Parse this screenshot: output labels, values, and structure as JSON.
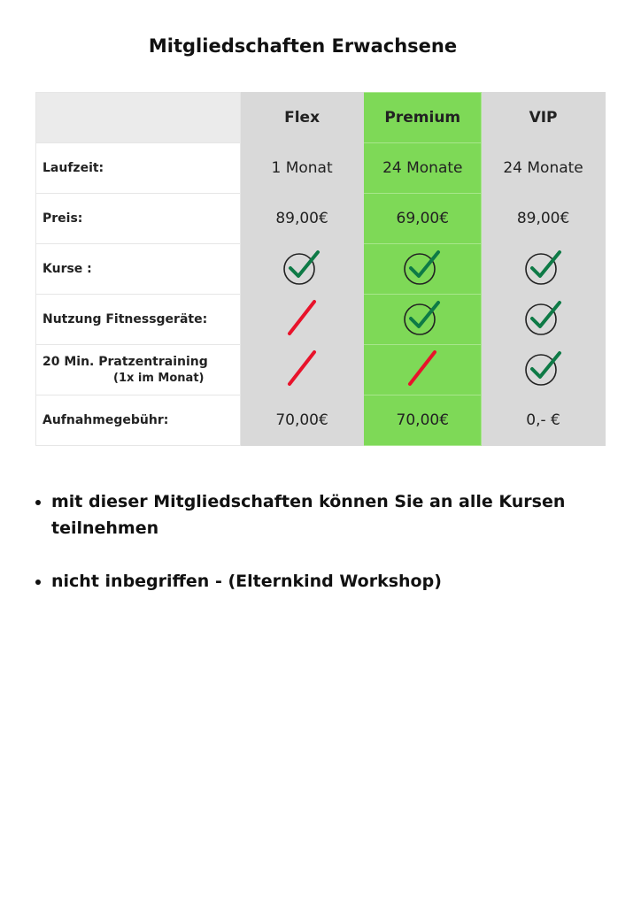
{
  "title": "Mitgliedschaften Erwachsene",
  "columns": [
    "Flex",
    "Premium",
    "VIP"
  ],
  "colors": {
    "premium": "#7ed957",
    "other": "#d9d9d9",
    "check": "#0e7a46",
    "cross": "#e8132b"
  },
  "rows": [
    {
      "label": "Laufzeit:",
      "values": [
        "1 Monat",
        "24 Monate",
        "24 Monate"
      ]
    },
    {
      "label": "Preis:",
      "values": [
        "89,00€",
        "69,00€",
        "89,00€"
      ]
    },
    {
      "label": "Kurse :",
      "icons": [
        "check",
        "check",
        "check"
      ]
    },
    {
      "label": "Nutzung Fitnessgeräte:",
      "icons": [
        "cross",
        "check",
        "check"
      ]
    },
    {
      "label": "20 Min. Pratzentraining",
      "sublabel": "(1x im Monat)",
      "icons": [
        "cross",
        "cross",
        "check"
      ]
    },
    {
      "label": "Aufnahmegebühr:",
      "values": [
        "70,00€",
        "70,00€",
        "0,- €"
      ]
    }
  ],
  "notes": [
    "mit dieser Mitgliedschaften können Sie an alle Kursen teilnehmen",
    "nicht inbegriffen  - (Elternkind Workshop)"
  ]
}
